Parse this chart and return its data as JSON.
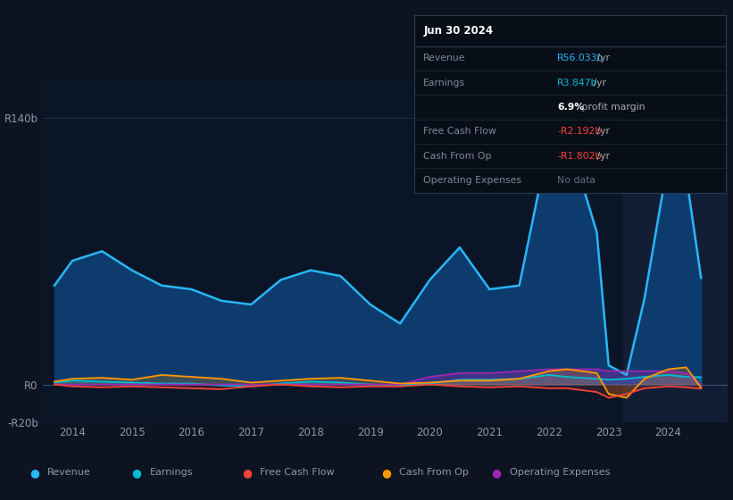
{
  "background_color": "#0d1320",
  "chart_bg_color": "#0a1628",
  "grid_color": "#1a2f4a",
  "text_color": "#8899aa",
  "title_color": "#ffffff",
  "years": [
    2013.7,
    2014.0,
    2014.5,
    2015.0,
    2015.5,
    2016.0,
    2016.5,
    2017.0,
    2017.5,
    2018.0,
    2018.5,
    2019.0,
    2019.5,
    2020.0,
    2020.5,
    2021.0,
    2021.5,
    2022.0,
    2022.3,
    2022.8,
    2023.0,
    2023.3,
    2023.6,
    2024.0,
    2024.3,
    2024.55
  ],
  "revenue": [
    52,
    65,
    70,
    60,
    52,
    50,
    44,
    42,
    55,
    60,
    57,
    42,
    32,
    55,
    72,
    50,
    52,
    128,
    132,
    80,
    10,
    5,
    45,
    118,
    110,
    56
  ],
  "earnings": [
    1,
    2,
    1.5,
    1,
    0.5,
    0.5,
    -0.5,
    -1,
    0.5,
    1.5,
    1,
    0,
    -0.5,
    0.5,
    2.5,
    2.5,
    3,
    5,
    4,
    3,
    2.5,
    3,
    4,
    5,
    4,
    3.8
  ],
  "free_cash_flow": [
    0,
    -1,
    -1.5,
    -1,
    -1.5,
    -2,
    -2.5,
    -1,
    0,
    -1,
    -1.5,
    -1,
    -1,
    0,
    -1,
    -1.5,
    -1,
    -2,
    -2,
    -4,
    -7,
    -5,
    -2,
    -1,
    -1.5,
    -2.2
  ],
  "cash_from_op": [
    1.5,
    3,
    3.5,
    2.5,
    5,
    4,
    3,
    1,
    2,
    3,
    3.5,
    2,
    0.5,
    1,
    2,
    2,
    3,
    7,
    8,
    6,
    -5,
    -7,
    3,
    8,
    9,
    -1.8
  ],
  "operating_expenses": [
    0,
    0,
    0,
    0,
    0,
    0,
    0,
    0,
    0,
    0,
    0,
    0,
    0,
    4,
    6,
    6,
    7,
    8,
    8,
    8,
    7,
    7,
    7,
    7,
    6,
    0
  ],
  "revenue_color": "#29b6f6",
  "revenue_fill_color": "#0d3b6e",
  "earnings_color": "#00bcd4",
  "free_cash_flow_color": "#f44336",
  "cash_from_op_color": "#ff9800",
  "operating_expenses_color": "#9c27b0",
  "ylim": [
    -20,
    160
  ],
  "yticks": [
    -20,
    0,
    140
  ],
  "ytick_labels": [
    "-R20b",
    "R0",
    "R140b"
  ],
  "xlim": [
    2013.5,
    2025.0
  ],
  "xticks": [
    2014,
    2015,
    2016,
    2017,
    2018,
    2019,
    2020,
    2021,
    2022,
    2023,
    2024
  ],
  "shaded_region_start": 2023.25,
  "shaded_region_color": "#111e35",
  "info_box": {
    "title": "Jun 30 2024",
    "rows": [
      {
        "label": "Revenue",
        "value": "R56.033b",
        "suffix": " /yr",
        "value_color": "#29b6f6",
        "bold": false
      },
      {
        "label": "Earnings",
        "value": "R3.847b",
        "suffix": " /yr",
        "value_color": "#00bcd4",
        "bold": false
      },
      {
        "label": "",
        "value": "6.9%",
        "suffix": " profit margin",
        "value_color": "#ffffff",
        "bold": true
      },
      {
        "label": "Free Cash Flow",
        "value": "-R2.192b",
        "suffix": " /yr",
        "value_color": "#f44336",
        "bold": false
      },
      {
        "label": "Cash From Op",
        "value": "-R1.802b",
        "suffix": " /yr",
        "value_color": "#f44336",
        "bold": false
      },
      {
        "label": "Operating Expenses",
        "value": "No data",
        "suffix": "",
        "value_color": "#607080",
        "bold": false
      }
    ],
    "bg_color": "#080e18",
    "border_color": "#2a3a50",
    "title_color": "#ffffff",
    "label_color": "#7a8898"
  },
  "legend": [
    {
      "label": "Revenue",
      "color": "#29b6f6"
    },
    {
      "label": "Earnings",
      "color": "#00bcd4"
    },
    {
      "label": "Free Cash Flow",
      "color": "#f44336"
    },
    {
      "label": "Cash From Op",
      "color": "#ff9800"
    },
    {
      "label": "Operating Expenses",
      "color": "#9c27b0"
    }
  ]
}
